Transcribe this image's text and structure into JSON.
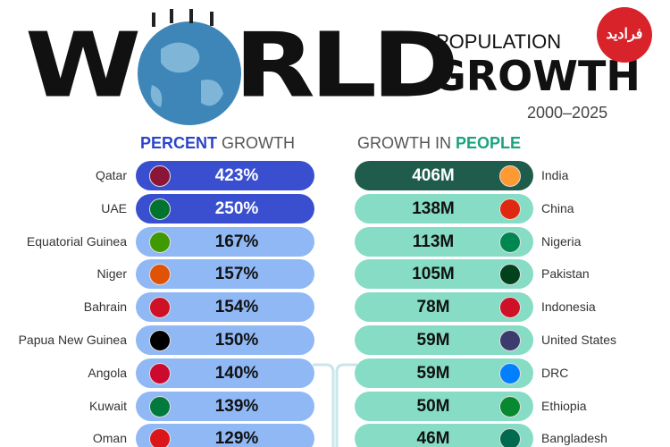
{
  "header": {
    "title_parts": [
      "W",
      "RLD"
    ],
    "subtitle_top": "POPULATION",
    "subtitle_main": "GROWTH",
    "period": "2000–2025",
    "logo": "فرادید"
  },
  "left": {
    "heading": [
      "PERCENT",
      "GROWTH"
    ],
    "rows": [
      [
        "Qatar",
        "423%"
      ],
      [
        "UAE",
        "250%"
      ],
      [
        "Equatorial Guinea",
        "167%"
      ],
      [
        "Niger",
        "157%"
      ],
      [
        "Bahrain",
        "154%"
      ],
      [
        "Papua New Guinea",
        "150%"
      ],
      [
        "Angola",
        "140%"
      ],
      [
        "Kuwait",
        "139%"
      ],
      [
        "Oman",
        "129%"
      ]
    ]
  },
  "right": {
    "heading": [
      "GROWTH IN",
      "PEOPLE"
    ],
    "rows": [
      [
        "India",
        "406M"
      ],
      [
        "China",
        "138M"
      ],
      [
        "Nigeria",
        "113M"
      ],
      [
        "Pakistan",
        "105M"
      ],
      [
        "Indonesia",
        "78M"
      ],
      [
        "United States",
        "59M"
      ],
      [
        "DRC",
        "59M"
      ],
      [
        "Ethiopia",
        "50M"
      ],
      [
        "Bangladesh",
        "46M"
      ]
    ]
  }
}
